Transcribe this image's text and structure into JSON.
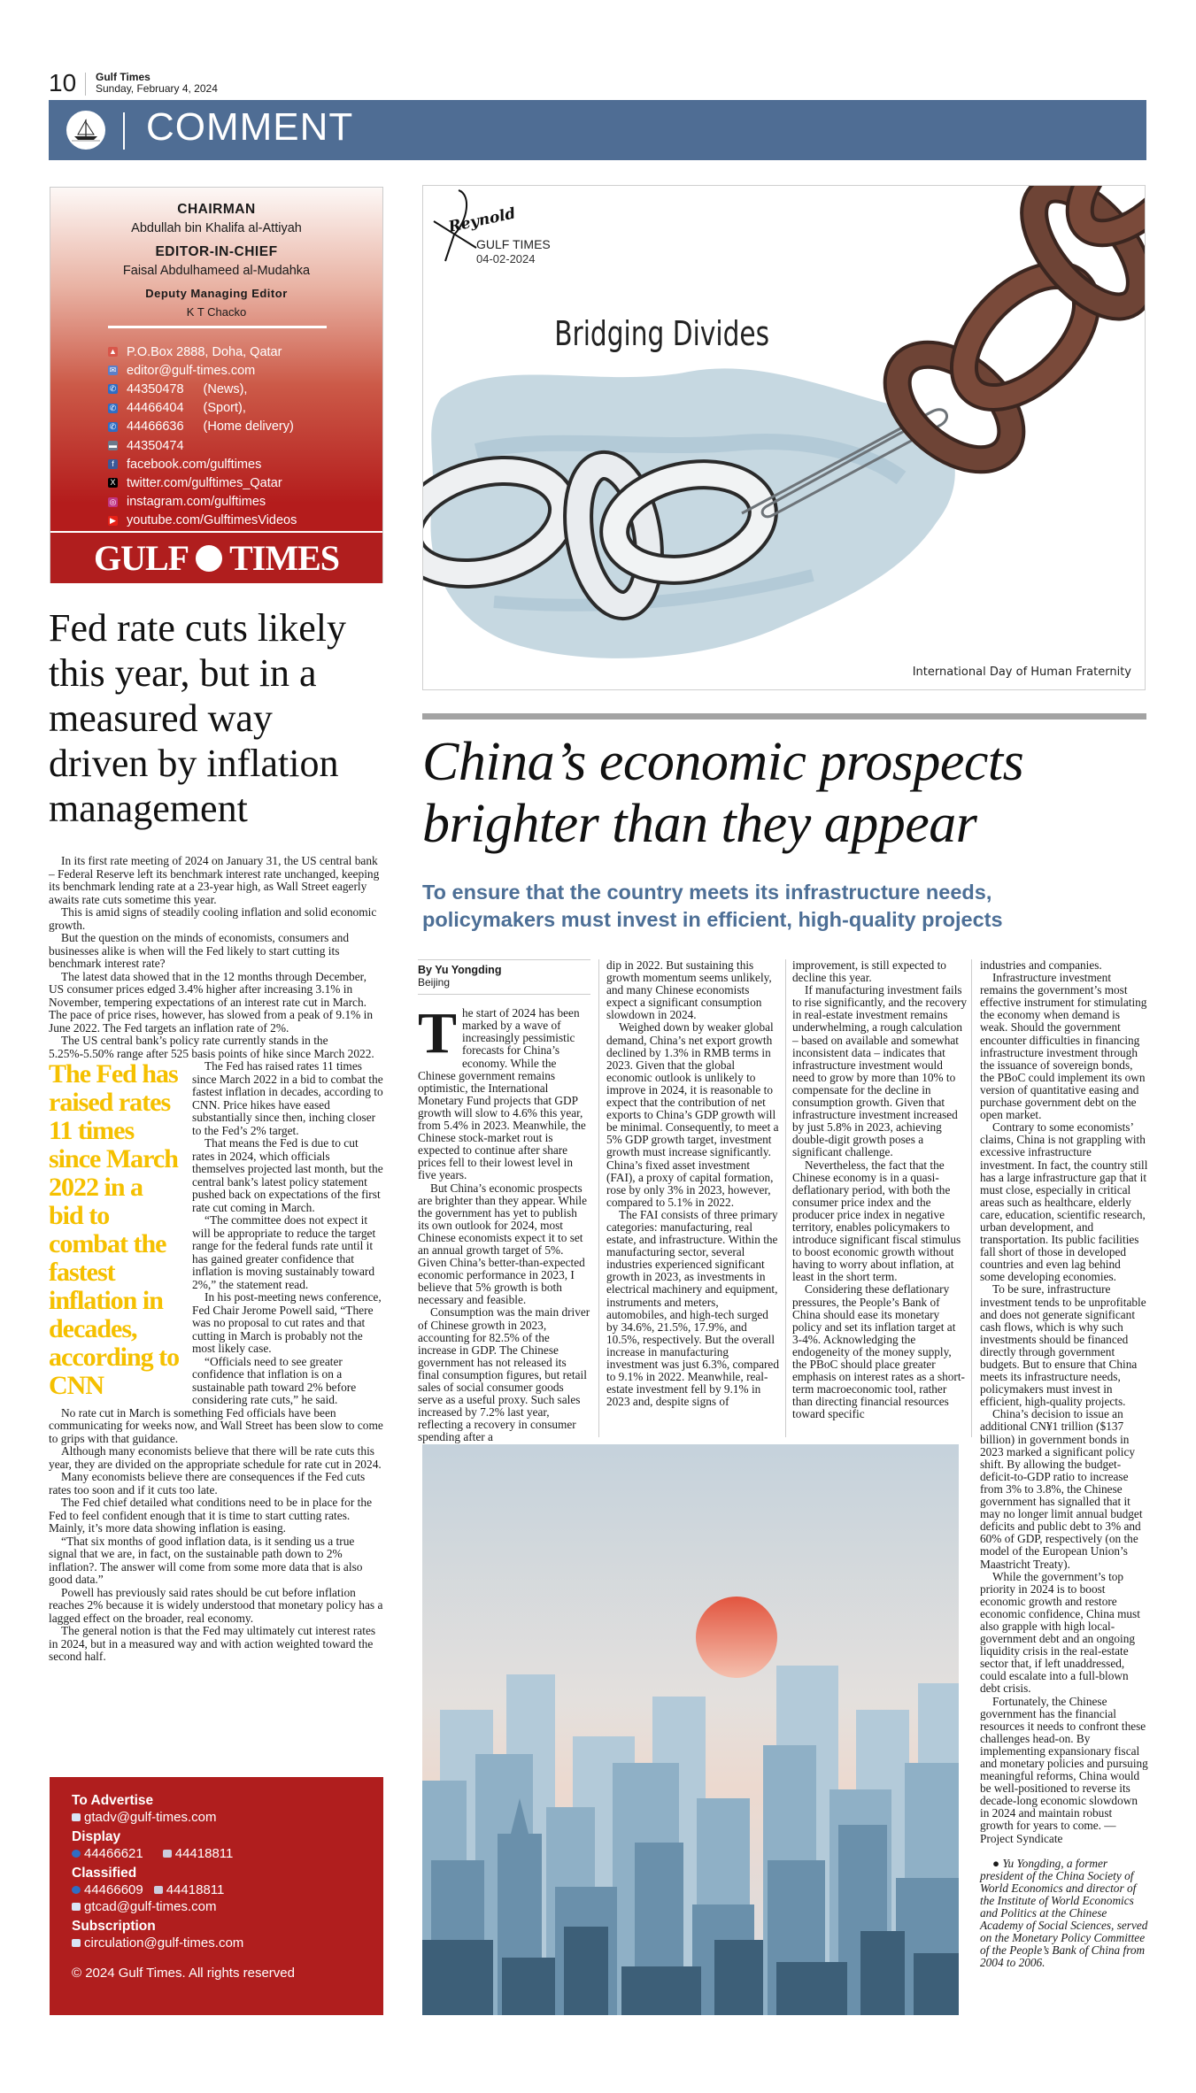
{
  "header": {
    "page_number": "10",
    "publication": "Gulf Times",
    "date": "Sunday, February 4, 2024",
    "section": "COMMENT",
    "band_color": "#4f6d94"
  },
  "masthead": {
    "chairman_label": "CHAIRMAN",
    "chairman_name": "Abdullah bin Khalifa al-Attiyah",
    "editor_label": "EDITOR-IN-CHIEF",
    "editor_name": "Faisal Abdulhameed al-Mudahka",
    "deputy_label": "Deputy Managing Editor",
    "deputy_name": "K T Chacko",
    "contacts": [
      {
        "icon": "location-pin-icon",
        "text": "P.O.Box 2888, Doha, Qatar",
        "label": ""
      },
      {
        "icon": "envelope-icon",
        "text": "editor@gulf-times.com",
        "label": ""
      },
      {
        "icon": "phone-icon",
        "text": "44350478",
        "label": "(News),"
      },
      {
        "icon": "phone-icon",
        "text": "44466404",
        "label": "(Sport),"
      },
      {
        "icon": "phone-icon",
        "text": "44466636",
        "label": "(Home delivery)"
      },
      {
        "icon": "fax-icon",
        "text": "44350474",
        "label": ""
      },
      {
        "icon": "facebook-icon",
        "text": "facebook.com/gulftimes",
        "label": ""
      },
      {
        "icon": "x-twitter-icon",
        "text": "twitter.com/gulftimes_Qatar",
        "label": ""
      },
      {
        "icon": "instagram-icon",
        "text": "instagram.com/gulftimes",
        "label": ""
      },
      {
        "icon": "youtube-icon",
        "text": "youtube.com/GulftimesVideos",
        "label": ""
      }
    ],
    "logo_left": "GULF",
    "logo_right": "TIMES",
    "brand_red": "#b01e1e"
  },
  "left_article": {
    "headline": "Fed rate cuts likely\nthis year, but in a\nmeasured way\ndriven by inflation\nmanagement",
    "pull_quote": "The Fed has raised rates 11 times since March 2022 in a bid to combat the fastest inflation in decades, according to CNN",
    "pull_quote_color": "#f5c000",
    "paragraphs_before": [
      "In its first rate meeting of 2024 on January 31, the US central bank – Federal Reserve left its benchmark interest rate unchanged, keeping its benchmark lending rate at a 23-year high, as Wall Street eagerly awaits rate cuts sometime this year.",
      "This is amid signs of steadily cooling inflation and solid economic growth.",
      "But the question on the minds of economists, consumers and businesses alike is when will the Fed likely to start cutting its benchmark interest rate?",
      "The latest data showed that in the 12 months through December, US consumer prices edged 3.4% higher after increasing 3.1% in November, tempering expectations of an interest rate cut in March. The pace of price rises, however, has slowed from a peak of 9.1% in June 2022. The Fed targets an inflation rate of 2%.",
      "The US central bank’s policy rate currently stands in the 5.25%-5.50% range after 525 basis points of hike since March 2022."
    ],
    "paragraphs_after": [
      "The Fed has raised rates 11 times since March 2022 in a bid to combat the fastest inflation in decades, according to CNN. Price hikes have eased substantially since then, inching closer to the Fed’s 2% target.",
      "That means the Fed is due to cut rates in 2024, which officials themselves projected last month, but the central bank’s latest policy statement pushed back on expectations of the first rate cut coming in March.",
      "“The committee does not expect it will be appropriate to reduce the target range for the federal funds rate until it has gained greater confidence that inflation is moving sustainably toward 2%,” the statement read.",
      "In his post-meeting news conference, Fed Chair Jerome Powell said, “There was no proposal to cut rates and that cutting in March is probably not the most likely case.",
      "“Officials need to see greater confidence that inflation is on a sustainable path toward 2% before considering rate cuts,” he said.",
      "No rate cut in March is something Fed officials have been communicating for weeks now, and Wall Street has been slow to come to grips with that guidance.",
      "Although many economists believe that there will be rate cuts this year, they are divided on the appropriate schedule for rate cut in 2024.",
      "Many economists believe there are consequences if the Fed cuts rates too soon and if it cuts too late.",
      "The Fed chief detailed what conditions need to be in place for the Fed to feel confident enough that it is time to start cutting rates. Mainly, it’s more data showing inflation is easing.",
      "“That six months of good inflation data, is it sending us a true signal that we are, in fact, on the sustainable path down to 2% inflation?. The answer will come from some more data that is also good data.”",
      "Powell has previously said rates should be cut before inflation reaches 2% because it is widely understood that monetary policy has a lagged effect on the broader, real economy.",
      "The general notion is that the Fed may ultimately cut interest rates in 2024, but in a measured way and with action weighted toward the second half."
    ]
  },
  "ad_box": {
    "advertise_label": "To Advertise",
    "advertise_email": "gtadv@gulf-times.com",
    "display_label": "Display",
    "display_phone": "44466621",
    "display_fax": "44418811",
    "classified_label": "Classified",
    "classified_phone": "44466609",
    "classified_fax": "44418811",
    "classified_email": "gtcad@gulf-times.com",
    "subscription_label": "Subscription",
    "subscription_email": "circulation@gulf-times.com",
    "copyright": "© 2024 Gulf Times. All rights reserved"
  },
  "cartoon": {
    "title": "Bridging Divides",
    "artist_signature": "Reynold",
    "credit": "GULF TIMES",
    "date": "04-02-2024",
    "caption": "International Day of Human Fraternity"
  },
  "main_article": {
    "headline": "China’s economic prospects\nbrighter than they appear",
    "subhead": "To ensure that the country meets its infrastructure needs,\npolicymakers must invest in efficient, high-quality projects",
    "subhead_color": "#4d6f96",
    "author": "By Yu Yongding",
    "dateline": "Beijing",
    "drop_cap": "T",
    "col1": [
      "he start of 2024 has been marked by a wave of increasingly pessimistic forecasts for China’s economy. While the Chinese government remains optimistic, the International Monetary Fund projects that GDP growth will slow to 4.6% this year, from 5.4% in 2023. Meanwhile, the Chinese stock-market rout is expected to continue after share prices fell to their lowest level in five years.",
      "But China’s economic prospects are brighter than they appear. While the government has yet to publish its own outlook for 2024, most Chinese economists expect it to set an annual growth target of 5%. Given China’s better-than-expected economic performance in 2023, I believe that 5% growth is both necessary and feasible.",
      "Consumption was the main driver of Chinese growth in 2023, accounting for 82.5% of the increase in GDP. The Chinese government has not released its final consumption figures, but retail sales of social consumer goods serve as a useful proxy. Such sales increased by 7.2% last year, reflecting a recovery in consumer spending after a"
    ],
    "col2": [
      "dip in 2022. But sustaining this growth momentum seems unlikely, and many Chinese economists expect a significant consumption slowdown in 2024.",
      "Weighed down by weaker global demand, China’s net export growth declined by 1.3% in RMB terms in 2023. Given that the global economic outlook is unlikely to improve in 2024, it is reasonable to expect that the contribution of net exports to China’s GDP growth will be minimal. Consequently, to meet a 5% GDP growth target, investment growth must increase significantly. China’s fixed asset investment (FAI), a proxy of capital formation, rose by only 3% in 2023, however, compared to 5.1% in 2022.",
      "The FAI consists of three primary categories: manufacturing, real estate, and infrastructure. Within the manufacturing sector, several industries experienced significant growth in 2023, as investments in electrical machinery and equipment, instruments and meters, automobiles, and high-tech surged by 34.6%, 21.5%, 17.9%, and 10.5%, respectively. But the overall increase in manufacturing investment was just 6.3%, compared to 9.1% in 2022. Meanwhile, real-estate investment fell by 9.1% in 2023 and, despite signs of"
    ],
    "col3": [
      "improvement, is still expected to decline this year.",
      "If manufacturing investment fails to rise significantly, and the recovery in real-estate investment remains underwhelming, a rough calculation – based on available and somewhat inconsistent data – indicates that infrastructure investment would need to grow by more than 10% to compensate for the decline in consumption growth. Given that infrastructure investment increased by just 5.8% in 2023, achieving double-digit growth poses a significant challenge.",
      "Nevertheless, the fact that the Chinese economy is in a quasi-deflationary period, with both the consumer price index and the producer price index in negative territory, enables policymakers to introduce significant fiscal stimulus to boost economic growth without having to worry about inflation, at least in the short term.",
      "Considering these deflationary pressures, the People’s Bank of China should ease its monetary policy and set its inflation target at 3-4%. Acknowledging the endogeneity of the money supply, the PBoC should place greater emphasis on interest rates as a short-term macroeconomic tool, rather than directing financial resources toward specific"
    ],
    "col4": [
      "industries and companies.",
      "Infrastructure investment remains the government’s most effective instrument for stimulating the economy when demand is weak. Should the government encounter difficulties in financing infrastructure investment through the issuance of sovereign bonds, the PBoC could implement its own version of quantitative easing and purchase government debt on the open market.",
      "Contrary to some economists’ claims, China is not grappling with excessive infrastructure investment. In fact, the country still has a large infrastructure gap that it must close, especially in critical areas such as healthcare, elderly care, education, scientific research, urban development, and transportation. Its public facilities fall short of those in developed countries and even lag behind some developing economies.",
      "To be sure, infrastructure investment tends to be unprofitable and does not generate significant cash flows, which is why such investments should be financed directly through government budgets. But to ensure that China meets its infrastructure needs, policymakers must invest in efficient, high-quality projects.",
      "China’s decision to issue an additional CN¥1 trillion ($137 billion) in government bonds in 2023 marked a significant policy shift. By allowing the budget-deficit-to-GDP ratio to increase from 3% to 3.8%, the Chinese government has signalled that it may no longer limit annual budget deficits and public debt to 3% and 60% of GDP, respectively (on the model of the European Union’s Maastricht Treaty).",
      "While the government’s top priority in 2024 is to boost economic growth and restore economic confidence, China must also grapple with high local-government debt and an ongoing liquidity crisis in the real-estate sector that, if left unaddressed, could escalate into a full-blown debt crisis.",
      "Fortunately, the Chinese government has the financial resources it needs to confront these challenges head-on. By implementing expansionary fiscal and monetary policies and pursuing meaningful reforms, China would be well-positioned to reverse its decade-long economic slowdown in 2024 and maintain robust growth for years to come. — Project Syndicate"
    ],
    "author_bio": "Yu Yongding, a former president of the China Society of World Economics and director of the Institute of World Economics and Politics at the Chinese Academy of Social Sciences, served on the Monetary Policy Committee of the People’s Bank of China from 2004 to 2006."
  }
}
